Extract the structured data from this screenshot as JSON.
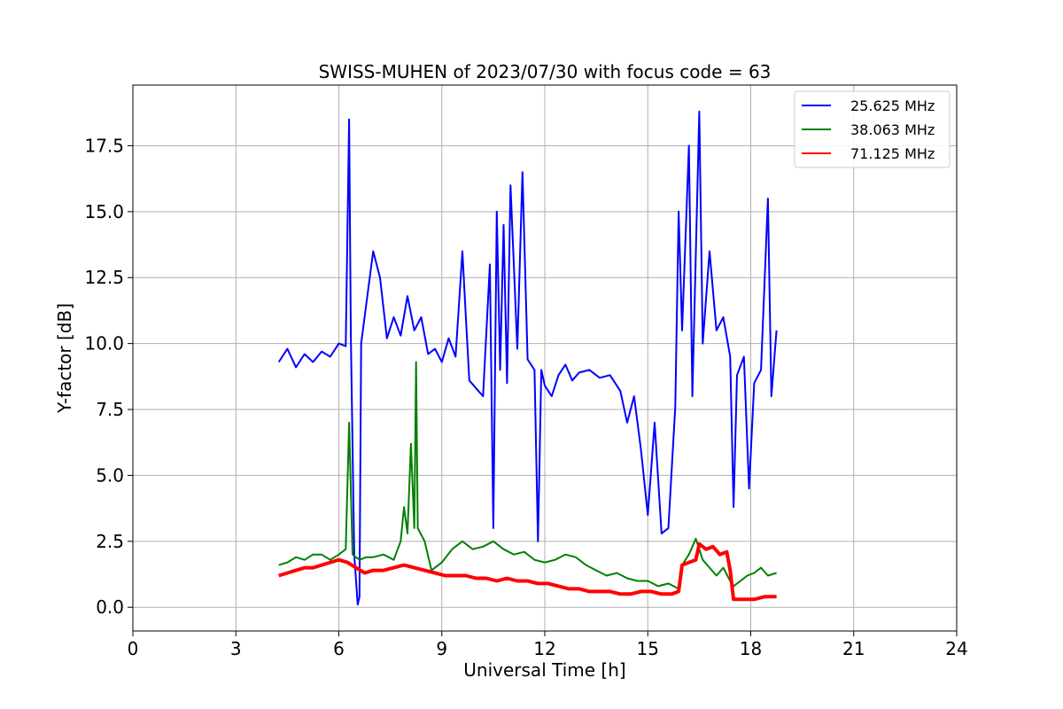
{
  "chart_data": {
    "type": "line",
    "title": "SWISS-MUHEN of 2023/07/30 with focus code = 63",
    "xlabel": "Universal Time [h]",
    "ylabel": "Y-factor [dB]",
    "xlim": [
      0,
      24
    ],
    "ylim": [
      -0.9,
      19.8
    ],
    "xticks": [
      "0",
      "3",
      "6",
      "9",
      "12",
      "15",
      "18",
      "21",
      "24"
    ],
    "yticks": [
      "0.0",
      "2.5",
      "5.0",
      "7.5",
      "10.0",
      "12.5",
      "15.0",
      "17.5"
    ],
    "grid": true,
    "legend_position": "top-right",
    "series": [
      {
        "name": "25.625 MHz",
        "color": "#0000ff",
        "x": [
          4.25,
          4.5,
          4.75,
          5.0,
          5.25,
          5.5,
          5.75,
          6.0,
          6.2,
          6.3,
          6.35,
          6.45,
          6.55,
          6.6,
          6.65,
          6.8,
          7.0,
          7.2,
          7.4,
          7.6,
          7.8,
          8.0,
          8.2,
          8.4,
          8.6,
          8.8,
          9.0,
          9.2,
          9.4,
          9.6,
          9.7,
          9.8,
          10.0,
          10.2,
          10.4,
          10.5,
          10.6,
          10.7,
          10.8,
          10.9,
          11.0,
          11.2,
          11.35,
          11.5,
          11.7,
          11.8,
          11.9,
          12.0,
          12.2,
          12.4,
          12.6,
          12.8,
          13.0,
          13.3,
          13.6,
          13.9,
          14.2,
          14.4,
          14.6,
          14.8,
          15.0,
          15.2,
          15.4,
          15.6,
          15.8,
          15.9,
          16.0,
          16.2,
          16.3,
          16.5,
          16.6,
          16.8,
          17.0,
          17.2,
          17.4,
          17.5,
          17.6,
          17.8,
          17.95,
          18.1,
          18.3,
          18.5,
          18.6,
          18.75
        ],
        "values": [
          9.3,
          9.8,
          9.1,
          9.6,
          9.3,
          9.7,
          9.5,
          10.0,
          9.9,
          18.5,
          10.2,
          2.0,
          0.1,
          0.4,
          10.0,
          11.5,
          13.5,
          12.5,
          10.2,
          11.0,
          10.3,
          11.8,
          10.5,
          11.0,
          9.6,
          9.8,
          9.3,
          10.2,
          9.5,
          13.5,
          11.0,
          8.6,
          8.3,
          8.0,
          13.0,
          3.0,
          15.0,
          9.0,
          14.5,
          8.5,
          16.0,
          9.8,
          16.5,
          9.4,
          9.0,
          2.5,
          9.0,
          8.4,
          8.0,
          8.8,
          9.2,
          8.6,
          8.9,
          9.0,
          8.7,
          8.8,
          8.2,
          7.0,
          8.0,
          6.0,
          3.5,
          7.0,
          2.8,
          3.0,
          7.6,
          15.0,
          10.5,
          17.5,
          8.0,
          18.8,
          10.0,
          13.5,
          10.5,
          11.0,
          9.5,
          3.8,
          8.8,
          9.5,
          4.5,
          8.5,
          9.0,
          15.5,
          8.0,
          10.5
        ]
      },
      {
        "name": "38.063 MHz",
        "color": "#008000",
        "x": [
          4.25,
          4.5,
          4.75,
          5.0,
          5.25,
          5.5,
          5.75,
          6.0,
          6.2,
          6.3,
          6.4,
          6.6,
          6.8,
          7.0,
          7.3,
          7.6,
          7.8,
          7.9,
          8.0,
          8.1,
          8.2,
          8.25,
          8.3,
          8.5,
          8.7,
          9.0,
          9.3,
          9.6,
          9.9,
          10.2,
          10.5,
          10.8,
          11.1,
          11.4,
          11.7,
          12.0,
          12.3,
          12.6,
          12.9,
          13.2,
          13.5,
          13.8,
          14.1,
          14.4,
          14.7,
          15.0,
          15.3,
          15.6,
          15.9,
          16.0,
          16.2,
          16.4,
          16.6,
          16.8,
          17.0,
          17.2,
          17.4,
          17.5,
          17.7,
          17.9,
          18.1,
          18.3,
          18.5,
          18.75
        ],
        "values": [
          1.6,
          1.7,
          1.9,
          1.8,
          2.0,
          2.0,
          1.8,
          2.0,
          2.2,
          7.0,
          2.0,
          1.8,
          1.9,
          1.9,
          2.0,
          1.8,
          2.5,
          3.8,
          2.8,
          6.2,
          3.0,
          9.3,
          3.0,
          2.5,
          1.4,
          1.7,
          2.2,
          2.5,
          2.2,
          2.3,
          2.5,
          2.2,
          2.0,
          2.1,
          1.8,
          1.7,
          1.8,
          2.0,
          1.9,
          1.6,
          1.4,
          1.2,
          1.3,
          1.1,
          1.0,
          1.0,
          0.8,
          0.9,
          0.7,
          1.6,
          2.0,
          2.6,
          1.8,
          1.5,
          1.2,
          1.5,
          1.0,
          0.8,
          1.0,
          1.2,
          1.3,
          1.5,
          1.2,
          1.3
        ]
      },
      {
        "name": "71.125 MHz",
        "color": "#ff0000",
        "x": [
          4.25,
          4.5,
          4.75,
          5.0,
          5.25,
          5.5,
          5.75,
          6.0,
          6.25,
          6.5,
          6.75,
          7.0,
          7.3,
          7.6,
          7.9,
          8.2,
          8.5,
          8.8,
          9.1,
          9.4,
          9.7,
          10.0,
          10.3,
          10.6,
          10.9,
          11.2,
          11.5,
          11.8,
          12.1,
          12.4,
          12.7,
          13.0,
          13.3,
          13.6,
          13.9,
          14.2,
          14.5,
          14.8,
          15.1,
          15.4,
          15.7,
          15.9,
          16.0,
          16.2,
          16.4,
          16.5,
          16.7,
          16.9,
          17.1,
          17.3,
          17.4,
          17.5,
          17.8,
          18.1,
          18.4,
          18.75
        ],
        "values": [
          1.2,
          1.3,
          1.4,
          1.5,
          1.5,
          1.6,
          1.7,
          1.8,
          1.7,
          1.5,
          1.3,
          1.4,
          1.4,
          1.5,
          1.6,
          1.5,
          1.4,
          1.3,
          1.2,
          1.2,
          1.2,
          1.1,
          1.1,
          1.0,
          1.1,
          1.0,
          1.0,
          0.9,
          0.9,
          0.8,
          0.7,
          0.7,
          0.6,
          0.6,
          0.6,
          0.5,
          0.5,
          0.6,
          0.6,
          0.5,
          0.5,
          0.6,
          1.6,
          1.7,
          1.8,
          2.4,
          2.2,
          2.3,
          2.0,
          2.1,
          1.4,
          0.3,
          0.3,
          0.3,
          0.4,
          0.4
        ]
      }
    ]
  }
}
